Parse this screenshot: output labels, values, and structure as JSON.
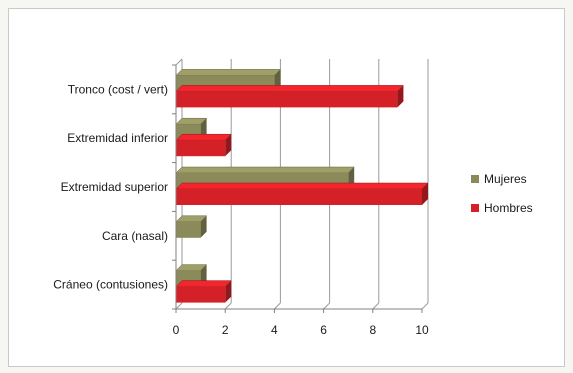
{
  "chart_data": {
    "type": "bar",
    "orientation": "horizontal",
    "style": "3d-clustered",
    "categories": [
      "Cráneo (contusiones)",
      "Cara (nasal)",
      "Extremidad superior",
      "Extremidad inferior",
      "Tronco (cost / vert)"
    ],
    "series": [
      {
        "name": "Mujeres",
        "color": "#8a8a5a",
        "values": [
          1,
          1,
          7,
          1,
          4
        ]
      },
      {
        "name": "Hombres",
        "color": "#d42127",
        "values": [
          2,
          0,
          10,
          2,
          9
        ]
      }
    ],
    "xlim": [
      0,
      10
    ],
    "xticks": [
      "0",
      "2",
      "4",
      "6",
      "8",
      "10"
    ],
    "grid": true,
    "legend_position": "right"
  }
}
